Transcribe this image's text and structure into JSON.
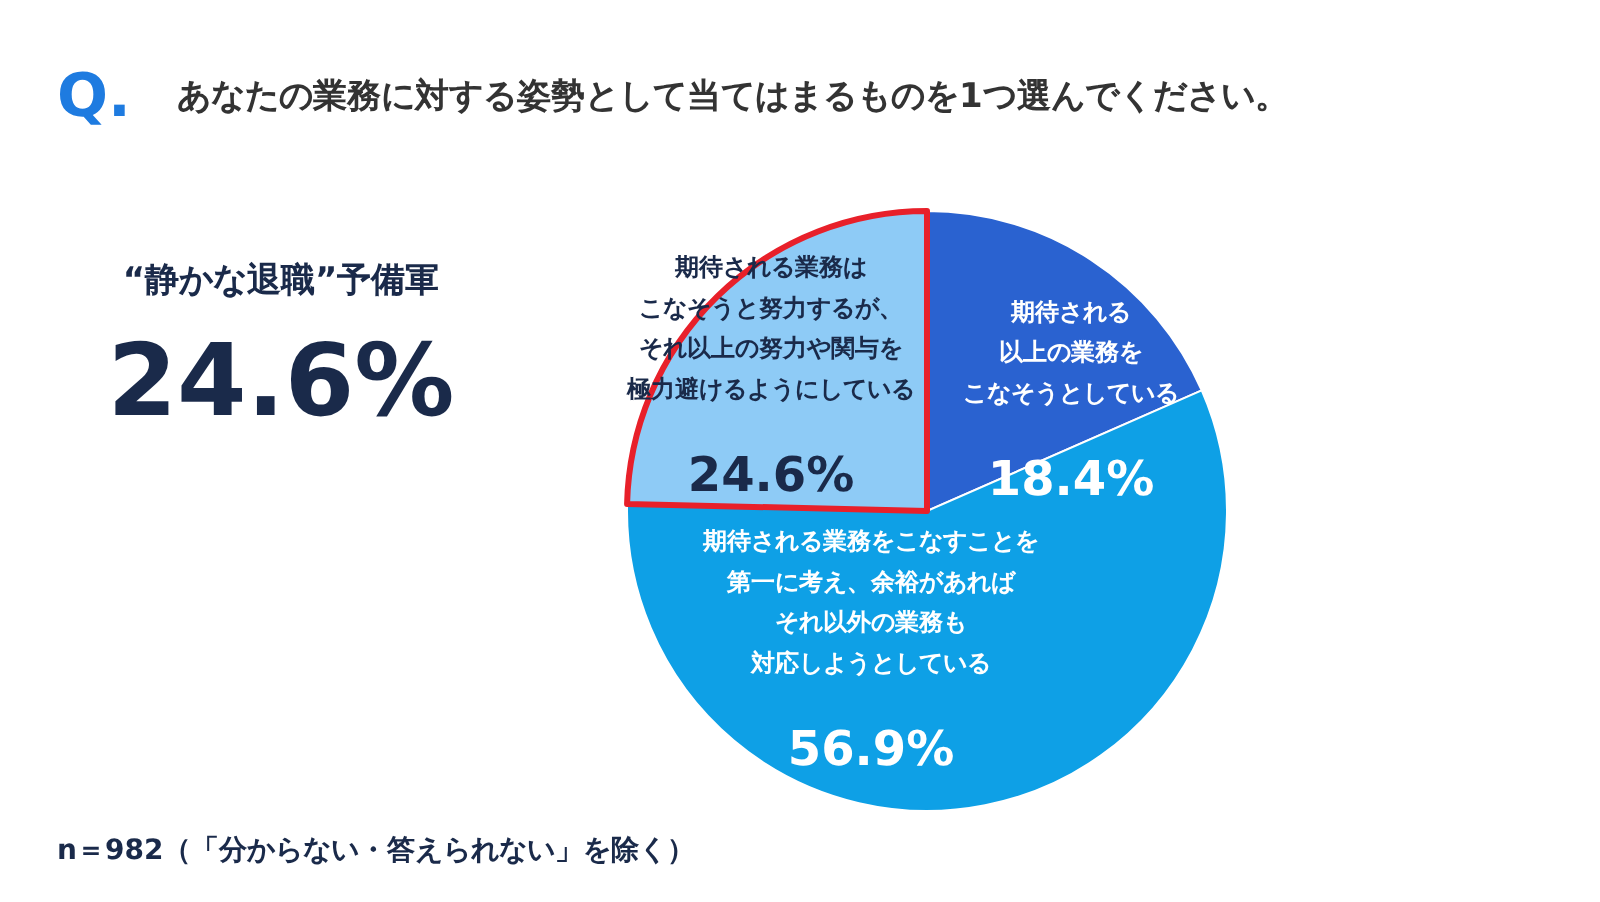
{
  "chart_data": {
    "type": "pie",
    "title": "Q. あなたの業務に対する姿勢として当てはまるものを1つ選んでください。",
    "categories": [
      "期待される以上の業務をこなそうとしている",
      "期待される業務をこなすことを第一に考え、余裕があればそれ以外の業務も対応しようとしている",
      "期待される業務はこなそうと努力するが、それ以上の努力や関与を極力避けるようにしている"
    ],
    "values": [
      18.4,
      56.9,
      24.6
    ],
    "colors": [
      "#2a62d0",
      "#0ea0e6",
      "#8ecbf6"
    ],
    "value_labels": [
      "18.4%",
      "56.9%",
      "24.6%"
    ],
    "annotations": [
      "“静かな退職”予備軍",
      "24.6%",
      "n＝982（「分からない・答えられない」を除く）"
    ]
  }
}
